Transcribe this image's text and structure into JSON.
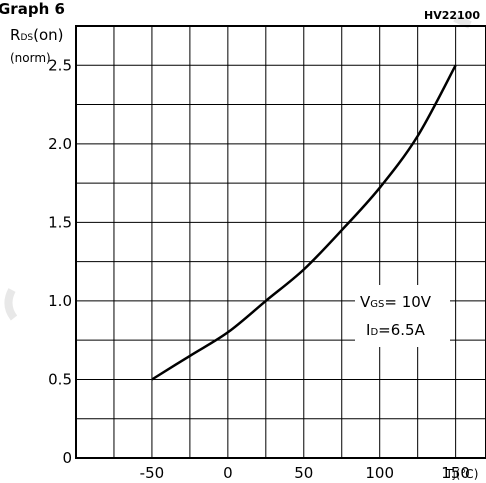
{
  "figure_code": "HV22100",
  "header_fragment": "Graph 6",
  "chart_data": {
    "type": "line",
    "ylabel": "RDS(on)",
    "ylabel_sub": "(norm)",
    "xlabel": "TJ(℃)",
    "xlim": [
      -100,
      170
    ],
    "ylim": [
      0,
      2.75
    ],
    "x_ticks": [
      -50,
      0,
      50,
      100,
      150
    ],
    "y_ticks": [
      0,
      0.5,
      1.0,
      1.5,
      2.0,
      2.5
    ],
    "x_tick_labels": [
      "-50",
      "0",
      "50",
      "100",
      "150"
    ],
    "y_tick_labels": [
      "0",
      "0.5",
      "1.0",
      "1.5",
      "2.0",
      "2.5"
    ],
    "grid": true,
    "series": [
      {
        "x": [
          -50,
          -25,
          0,
          25,
          50,
          75,
          100,
          125,
          150
        ],
        "y": [
          0.5,
          0.65,
          0.8,
          1.0,
          1.2,
          1.45,
          1.72,
          2.05,
          2.5
        ]
      }
    ],
    "annotations": [
      "VGS= 10V",
      "ID=6.5A"
    ]
  }
}
